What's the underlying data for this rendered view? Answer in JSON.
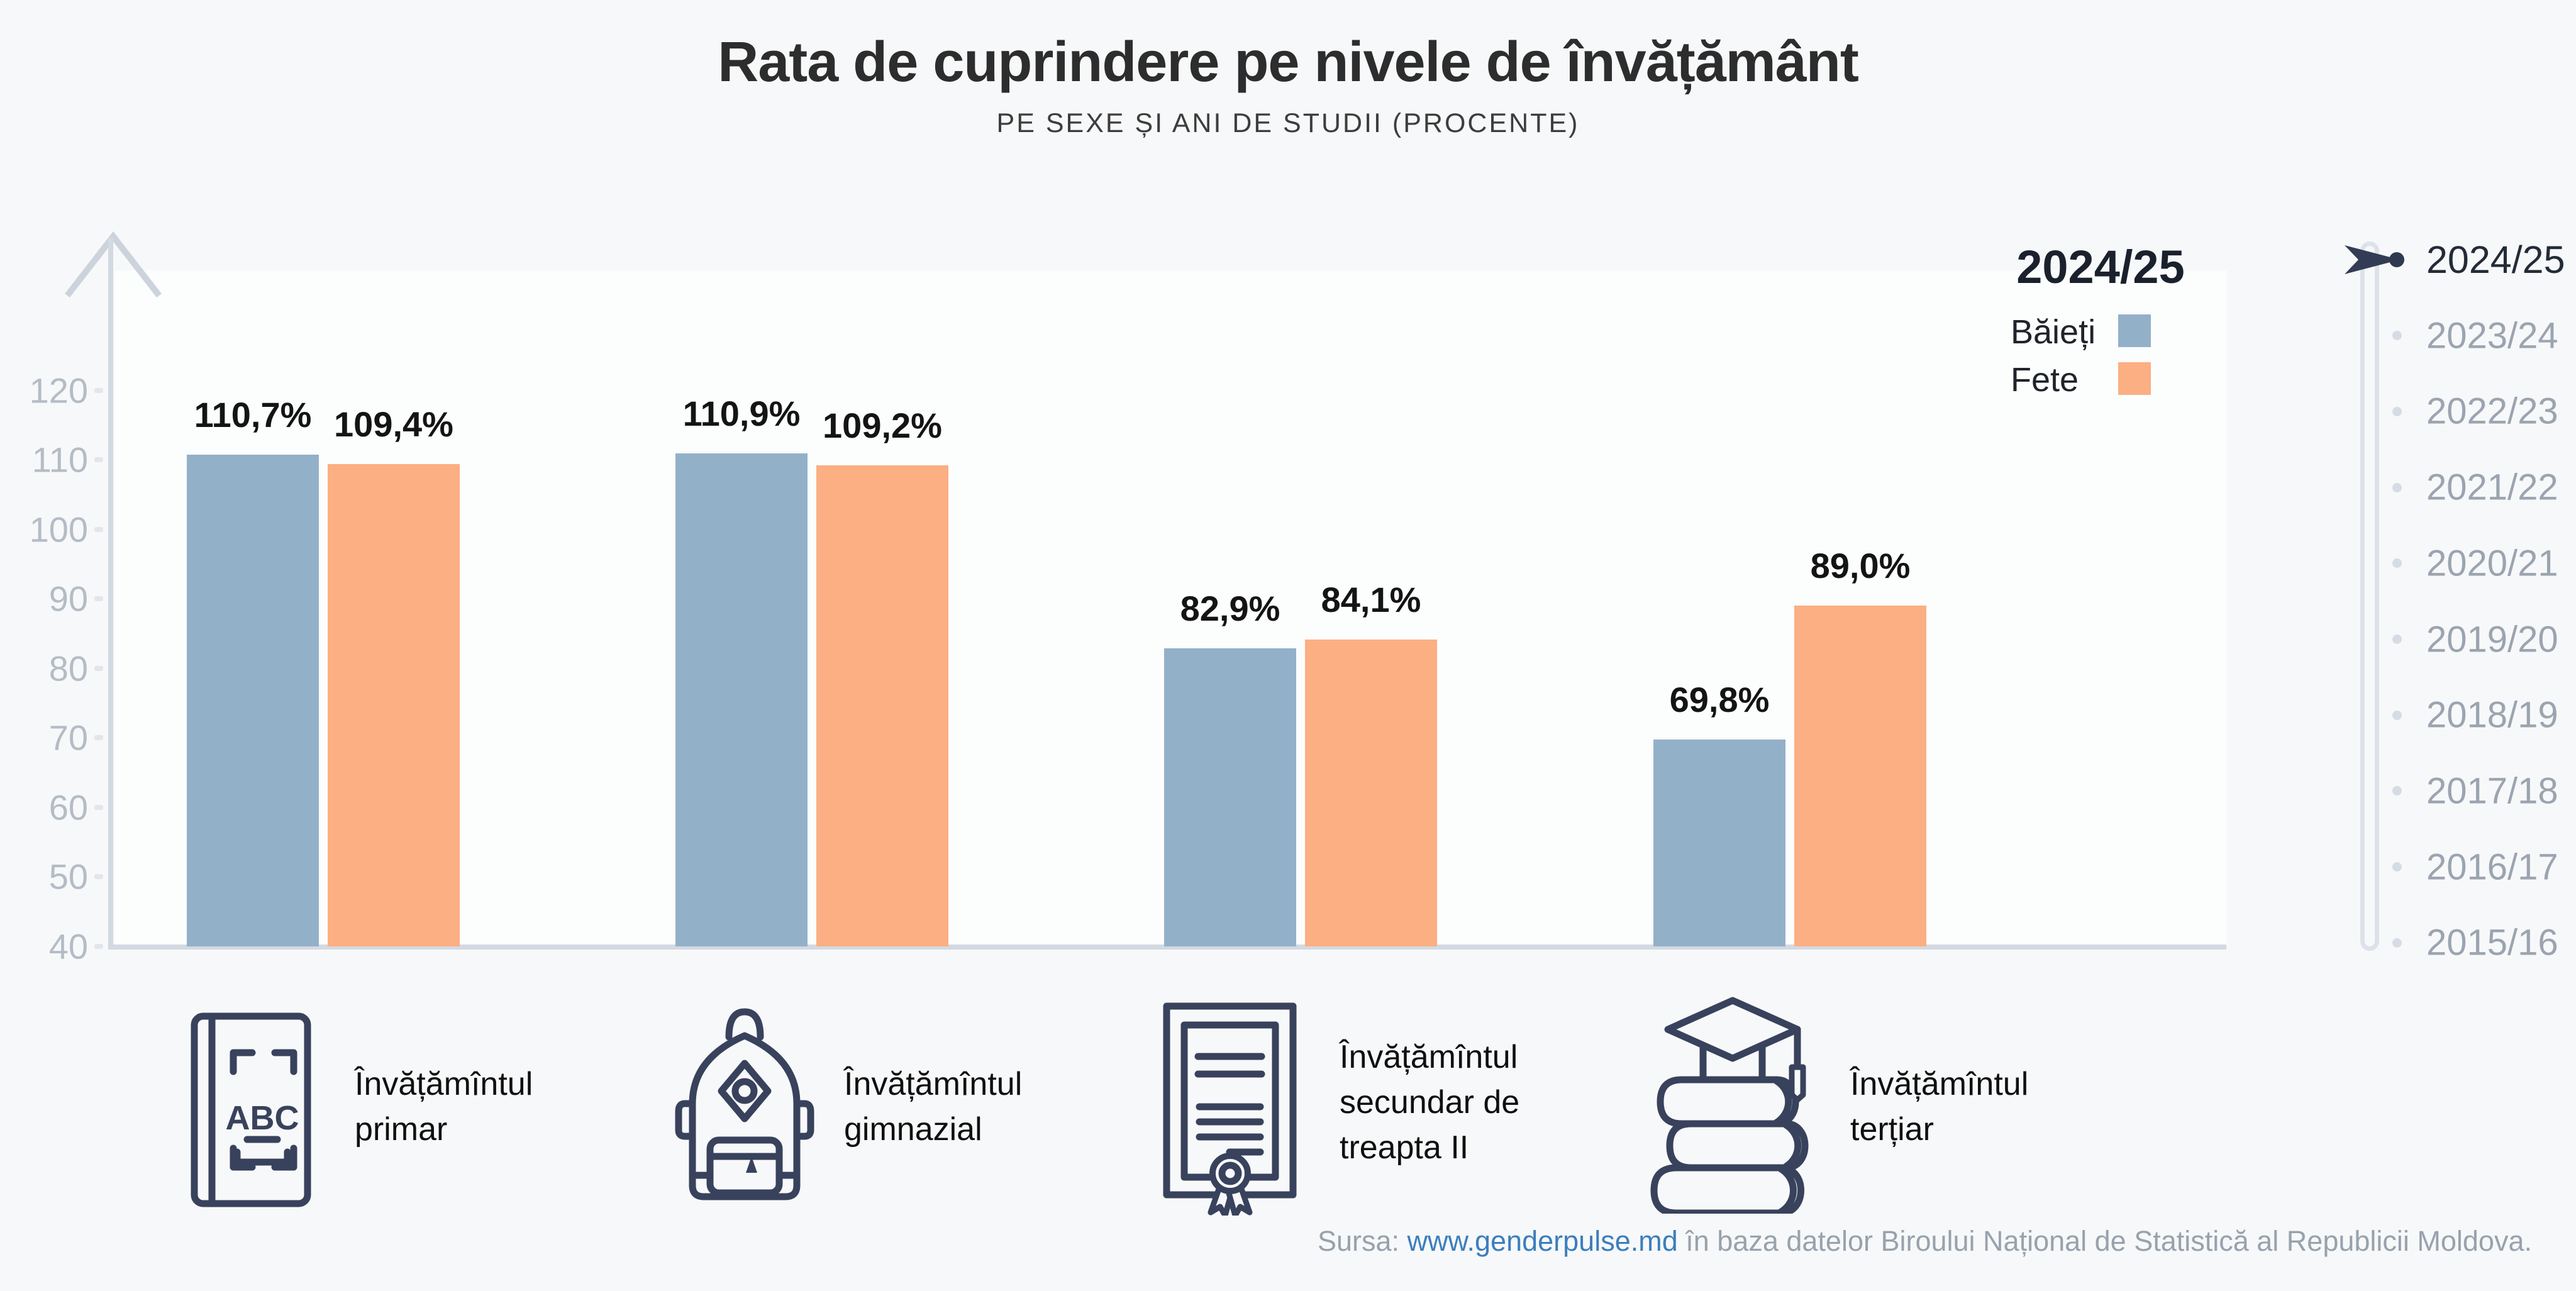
{
  "title": "Rata de cuprindere pe nivele de învățământ",
  "subtitle": "PE SEXE ȘI ANI DE STUDII (PROCENTE)",
  "colors": {
    "boys": "#93b0c9",
    "girls": "#fbaf82",
    "axis": "#d3d9e1",
    "icon_navy": "#39425c",
    "selected_navy": "#2e3951",
    "inactive_gray": "#9ba4b0"
  },
  "legend": {
    "year": "2024/25",
    "items": [
      {
        "label": "Băieți",
        "color": "#93b0c9"
      },
      {
        "label": "Fete",
        "color": "#fbaf82"
      }
    ]
  },
  "chart_data": {
    "type": "bar",
    "title": "Rata de cuprindere pe nivele de învățământ",
    "subtitle": "PE SEXE ȘI ANI DE STUDII (PROCENTE)",
    "categories": [
      "Învățămîntul primar",
      "Învățămîntul gimnazial",
      "Învățămîntul secundar de treapta II",
      "Învățămîntul terțiar"
    ],
    "series": [
      {
        "name": "Băieți",
        "color": "#93b0c9",
        "values": [
          110.7,
          110.9,
          82.9,
          69.8
        ],
        "labels": [
          "110,7%",
          "110,9%",
          "82,9%",
          "69,8%"
        ]
      },
      {
        "name": "Fete",
        "color": "#fbaf82",
        "values": [
          109.4,
          109.2,
          84.1,
          89.0
        ],
        "labels": [
          "109,4%",
          "109,2%",
          "84,1%",
          "89,0%"
        ]
      }
    ],
    "ylim": [
      40,
      125
    ],
    "yticks": [
      120,
      110,
      100,
      90,
      80,
      70,
      60,
      50,
      40
    ],
    "grid": false,
    "legend_position": "top-right",
    "selected_year": "2024/25"
  },
  "timeline": {
    "years": [
      "2024/25",
      "2023/24",
      "2022/23",
      "2021/22",
      "2020/21",
      "2019/20",
      "2018/19",
      "2017/18",
      "2016/17",
      "2015/16"
    ],
    "selected_index": 0
  },
  "groups": [
    {
      "label": "Învățămîntul\nprimar",
      "icon": "abc-book"
    },
    {
      "label": "Învățămîntul\ngimnazial",
      "icon": "backpack"
    },
    {
      "label": "Învățămîntul\nsecundar de\ntreapta II",
      "icon": "certificate"
    },
    {
      "label": "Învățămîntul\nterțiar",
      "icon": "books-graduation-cap"
    }
  ],
  "icons": {
    "abc_text": "ABC"
  },
  "source": {
    "prefix": "Sursa: ",
    "link": "www.genderpulse.md",
    "suffix": " în baza datelor Biroului Național de Statistică al Republicii Moldova."
  }
}
